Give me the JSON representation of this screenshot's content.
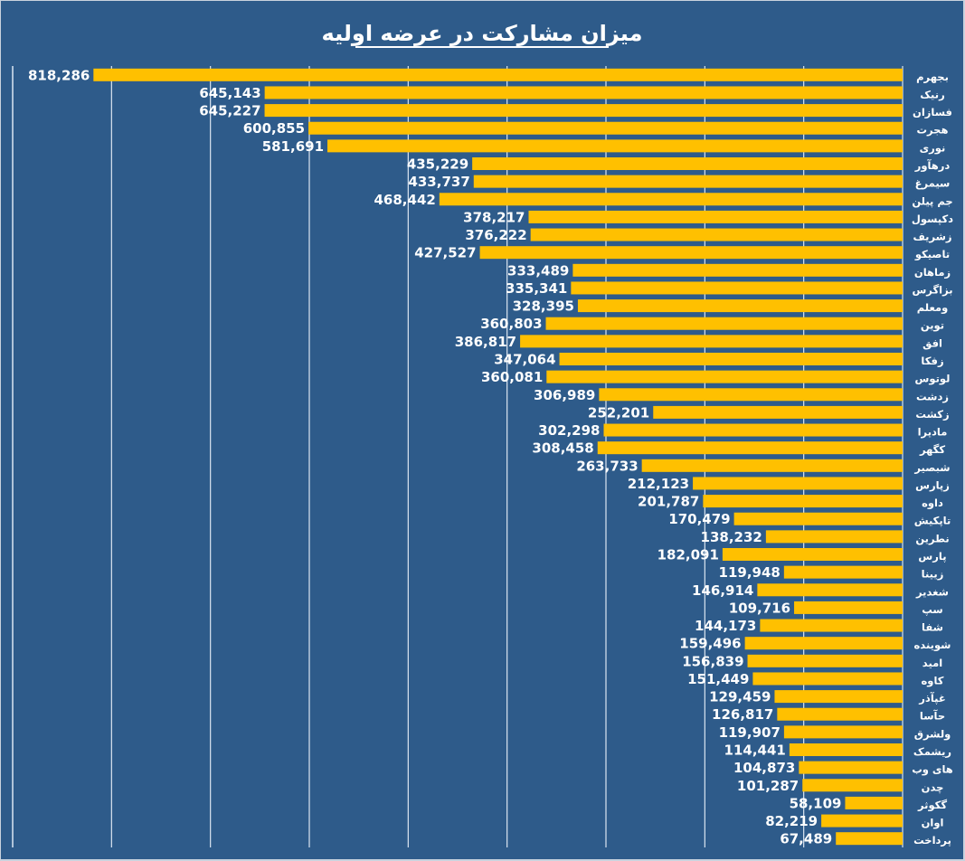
{
  "chart_data": {
    "type": "bar",
    "orientation": "horizontal",
    "direction": "right-to-left",
    "title": "میزان مشارکت در عرضه اولیه",
    "xlabel": "",
    "ylabel": "",
    "xlim": [
      0,
      900000
    ],
    "grid": true,
    "grid_step": 100000,
    "colors": {
      "background": "#2e5b8a",
      "bar": "#ffc000",
      "grid": "#dce6f2",
      "text": "#ffffff"
    },
    "categories": [
      "بجهرم",
      "رنیک",
      "فسازان",
      "هجرت",
      "نوری",
      "درهآور",
      "سیمرغ",
      "جم پیلن",
      "دکپسول",
      "زشریف",
      "تاصیکو",
      "زماهان",
      "بزاگرس",
      "ومعلم",
      "توین",
      "افق",
      "زفکا",
      "لوتوس",
      "زدشت",
      "زکشت",
      "مادیرا",
      "کگهر",
      "شبصیر",
      "زپارس",
      "داوه",
      "تاپکیش",
      "نطرین",
      "پارس",
      "زیینا",
      "شغدیر",
      "سپ",
      "شفا",
      "شوینده",
      "امید",
      "کاوه",
      "غپآذر",
      "حآسا",
      "ولشرق",
      "ریشمک",
      "های وب",
      "چدن",
      "گکوثر",
      "اوان",
      "پرداخت"
    ],
    "values": [
      818286,
      645143,
      645227,
      600855,
      581691,
      435229,
      433737,
      468442,
      378217,
      376222,
      427527,
      333489,
      335341,
      328395,
      360803,
      386817,
      347064,
      360081,
      306989,
      252201,
      302298,
      308458,
      263733,
      212123,
      201787,
      170479,
      138232,
      182091,
      119948,
      146914,
      109716,
      144173,
      159496,
      156839,
      151449,
      129459,
      126817,
      119907,
      114441,
      104873,
      101287,
      58109,
      82219,
      67489
    ],
    "value_labels": [
      "818,286",
      "645,143",
      "645,227",
      "600,855",
      "581,691",
      "435,229",
      "433,737",
      "468,442",
      "378,217",
      "376,222",
      "427,527",
      "333,489",
      "335,341",
      "328,395",
      "360,803",
      "386,817",
      "347,064",
      "360,081",
      "306,989",
      "252,201",
      "302,298",
      "308,458",
      "263,733",
      "212,123",
      "201,787",
      "170,479",
      "138,232",
      "182,091",
      "119,948",
      "146,914",
      "109,716",
      "144,173",
      "159,496",
      "156,839",
      "151,449",
      "129,459",
      "126,817",
      "119,907",
      "114,441",
      "104,873",
      "101,287",
      "58,109",
      "82,219",
      "67,489"
    ]
  }
}
